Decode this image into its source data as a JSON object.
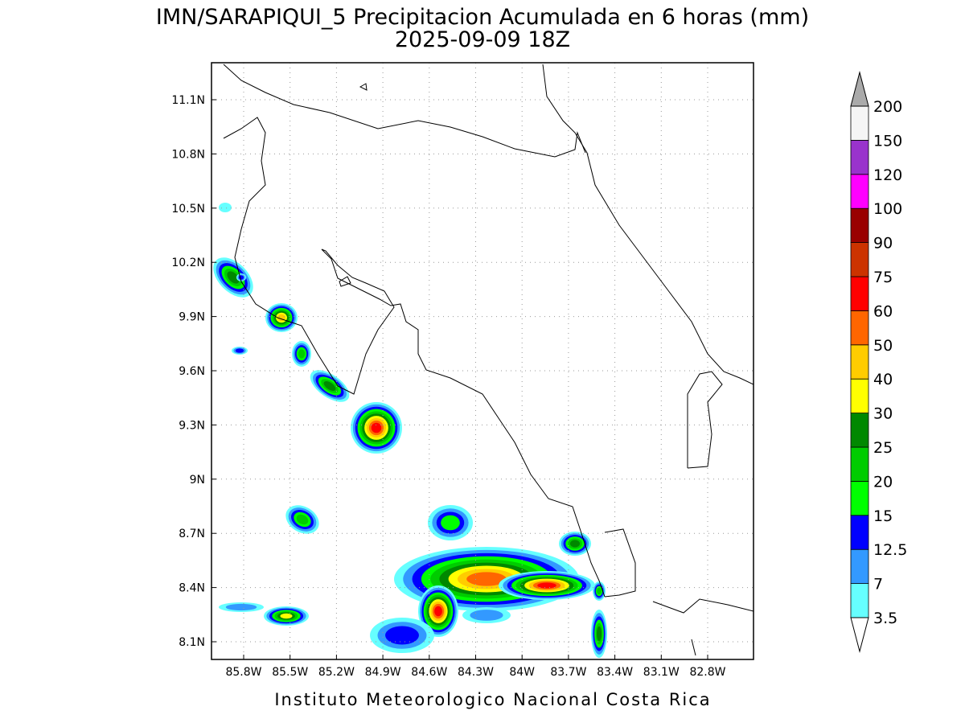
{
  "title": "IMN/SARAPIQUI_5 Precipitacion Acumulada en 6 horas (mm)",
  "subtitle": "2025-09-09 18Z",
  "map": {
    "lat_ticks": [
      "11.1N",
      "10.8N",
      "10.5N",
      "10.2N",
      "9.9N",
      "9.6N",
      "9.3N",
      "9N",
      "8.7N",
      "8.4N",
      "8.1N"
    ],
    "lon_ticks": [
      "85.8W",
      "85.5W",
      "85.2W",
      "84.9W",
      "84.6W",
      "84.3W",
      "84W",
      "83.7W",
      "83.4W",
      "83.1W",
      "82.8W"
    ]
  },
  "colorbar": {
    "levels": [
      "3.5",
      "7",
      "12.5",
      "15",
      "20",
      "25",
      "30",
      "40",
      "50",
      "60",
      "75",
      "90",
      "100",
      "120",
      "150",
      "200"
    ],
    "colors": [
      "#66ffff",
      "#3399ff",
      "#0000ff",
      "#00ff00",
      "#00cc00",
      "#008800",
      "#ffff00",
      "#ffcc00",
      "#ff6600",
      "#ff0000",
      "#cc3300",
      "#990000",
      "#ff00ff",
      "#9933cc",
      "#f5f5f5"
    ],
    "under_color": "#ffffff",
    "over_color": "#aaaaaa"
  },
  "footer": "Instituto Meteorologico Nacional Costa Rica"
}
